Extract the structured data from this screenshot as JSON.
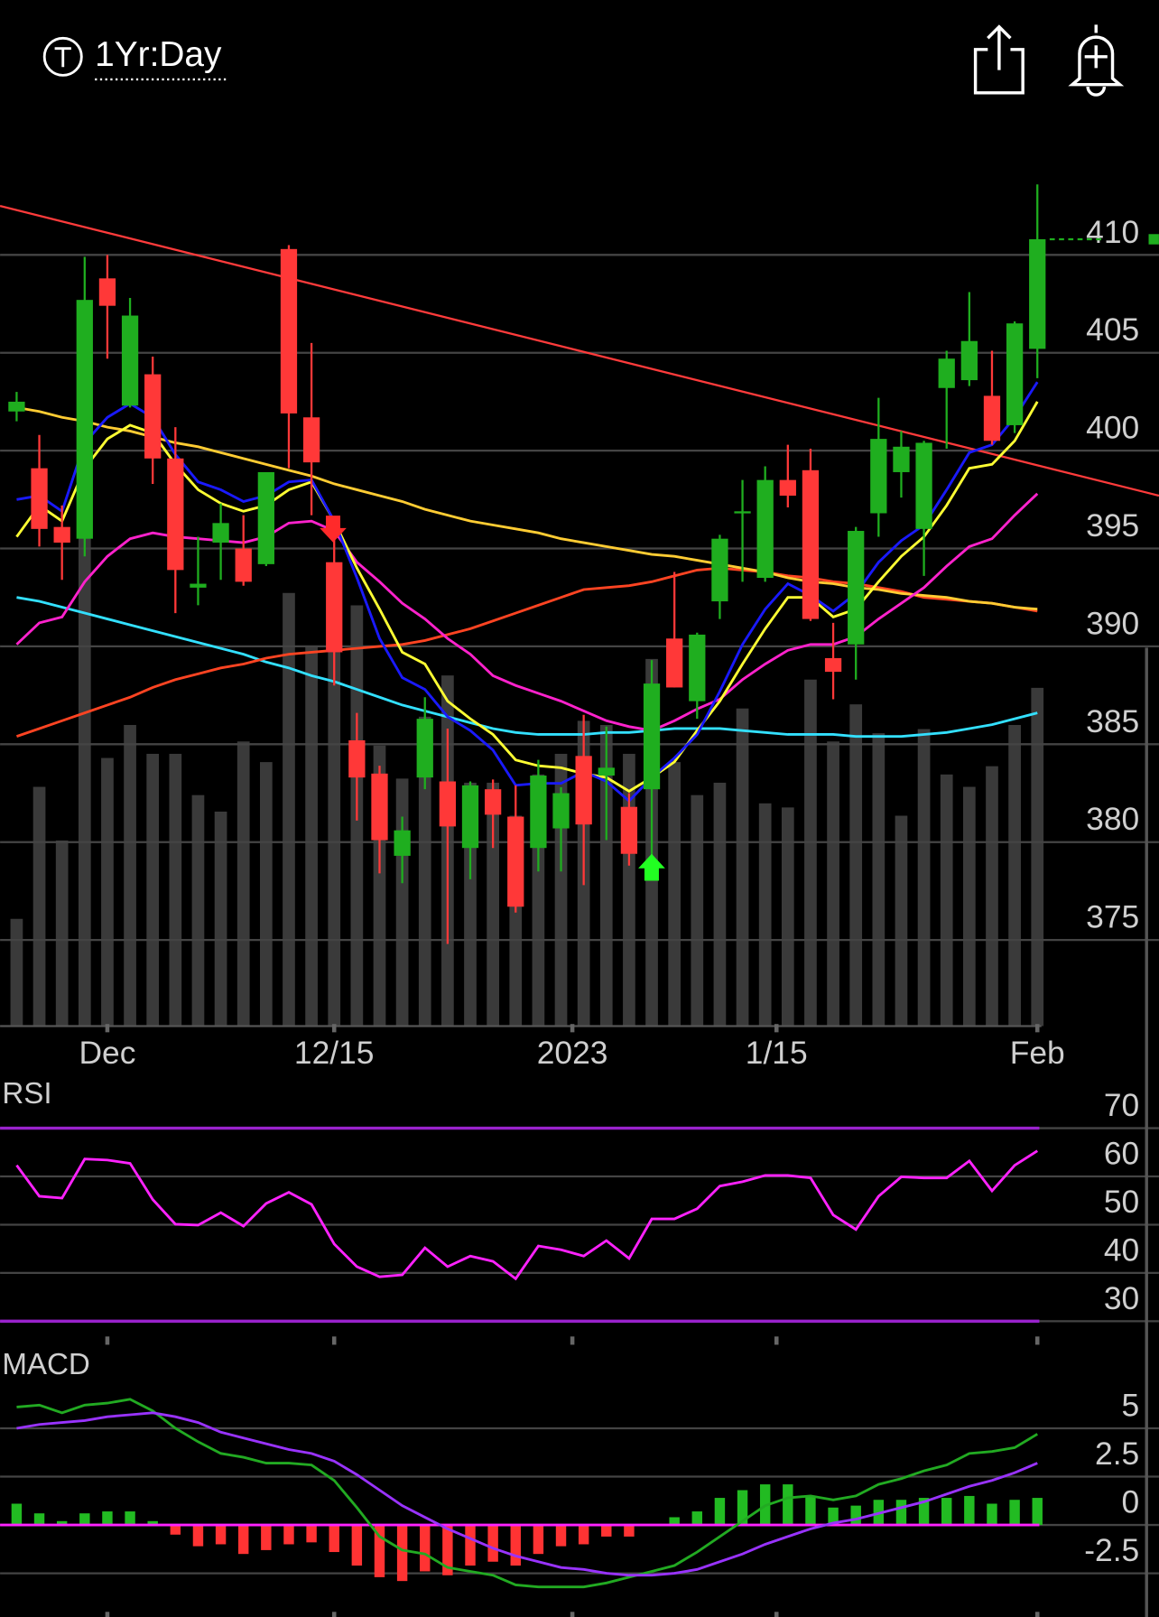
{
  "chart_data": [
    {
      "type": "candlestick",
      "title": "1Yr:Day",
      "open": [
        402.0,
        399.1,
        396.1,
        395.5,
        408.8,
        402.3,
        403.9,
        399.6,
        393.0,
        395.3,
        395.0,
        394.2,
        410.3,
        401.7,
        394.3,
        385.2,
        383.5,
        379.3,
        383.3,
        383.1,
        379.7,
        382.7,
        381.3,
        379.7,
        380.7,
        384.4,
        383.4,
        381.8,
        382.7,
        390.4,
        387.2,
        392.3,
        396.8,
        393.5,
        398.5,
        399.0,
        389.4,
        390.1,
        396.8,
        398.9,
        396.0,
        403.2,
        403.6,
        402.8,
        401.3,
        405.2
      ],
      "close": [
        402.5,
        396.0,
        395.3,
        407.7,
        407.4,
        406.9,
        399.6,
        393.9,
        393.2,
        396.3,
        393.3,
        398.9,
        401.9,
        399.4,
        389.7,
        383.3,
        380.1,
        380.6,
        386.3,
        380.8,
        382.9,
        381.4,
        376.7,
        383.4,
        382.5,
        380.9,
        383.8,
        379.4,
        388.1,
        387.9,
        390.6,
        395.5,
        396.9,
        398.5,
        397.7,
        391.4,
        388.7,
        395.9,
        400.6,
        400.2,
        400.4,
        404.7,
        405.6,
        400.5,
        406.5,
        410.8
      ],
      "high": [
        403.0,
        400.8,
        397.2,
        409.9,
        410.0,
        407.8,
        404.8,
        401.2,
        395.6,
        397.3,
        396.7,
        398.9,
        410.5,
        405.5,
        396.4,
        386.6,
        383.9,
        381.3,
        387.4,
        385.8,
        383.1,
        383.2,
        382.9,
        384.2,
        382.8,
        386.5,
        385.9,
        382.5,
        389.3,
        393.8,
        390.7,
        395.7,
        398.5,
        399.2,
        400.3,
        400.1,
        391.2,
        396.1,
        402.7,
        401.0,
        400.5,
        405.1,
        408.1,
        405.1,
        406.6,
        413.6
      ],
      "low": [
        401.5,
        395.1,
        393.4,
        394.6,
        404.7,
        402.2,
        398.3,
        391.7,
        392.1,
        393.4,
        393.1,
        394.1,
        399.1,
        396.7,
        388.0,
        381.1,
        378.4,
        377.9,
        382.7,
        374.8,
        378.1,
        379.7,
        376.4,
        378.5,
        378.5,
        377.8,
        380.1,
        378.8,
        378.3,
        387.9,
        386.3,
        391.4,
        393.3,
        393.3,
        397.1,
        391.3,
        387.3,
        388.3,
        395.6,
        397.6,
        393.6,
        400.1,
        403.3,
        400.3,
        400.9,
        403.7
      ],
      "up_color": "#1fae1f",
      "down_color": "#ff3838",
      "xlim": [
        -0.73,
        50.36
      ],
      "xticks": [
        {
          "value": 4,
          "label": "Dec"
        },
        {
          "value": 14,
          "label": "12/15"
        },
        {
          "value": 24.5,
          "label": "2023"
        },
        {
          "value": 33.5,
          "label": "1/15"
        },
        {
          "value": 45,
          "label": "Feb"
        }
      ],
      "ylim": [
        370.6,
        416.7
      ],
      "yticks": [
        375,
        380,
        385,
        390,
        395,
        400,
        405,
        410
      ],
      "volume": {
        "color": "#3a3a3a",
        "ylim": [
          0,
          120
        ],
        "values": [
          26,
          58,
          45,
          119,
          65,
          73,
          66,
          66,
          56,
          52,
          69,
          64,
          105,
          92,
          91,
          102,
          68,
          60,
          75,
          85,
          59,
          59,
          51,
          61,
          66,
          74,
          73,
          66,
          89,
          64,
          56,
          59,
          77,
          54,
          53,
          84,
          69,
          78,
          71,
          51,
          72,
          61,
          58,
          63,
          73,
          82
        ]
      },
      "trendline": {
        "x": [
          -0.73,
          50.36
        ],
        "values": [
          412.5,
          397.7
        ],
        "color": "#ff3b3b"
      },
      "series": [
        {
          "color": "#33e0ff",
          "values": [
            392.5,
            392.3,
            392.0,
            391.7,
            391.4,
            391.1,
            390.8,
            390.5,
            390.2,
            389.9,
            389.6,
            389.2,
            388.9,
            388.5,
            388.2,
            387.8,
            387.4,
            387.0,
            386.7,
            386.4,
            386.1,
            385.8,
            385.6,
            385.5,
            385.5,
            385.5,
            385.6,
            385.6,
            385.7,
            385.8,
            385.8,
            385.8,
            385.7,
            385.6,
            385.5,
            385.5,
            385.5,
            385.4,
            385.4,
            385.4,
            385.5,
            385.6,
            385.8,
            386.0,
            386.3,
            386.6
          ]
        },
        {
          "color": "#ff4422",
          "values": [
            385.4,
            385.8,
            386.2,
            386.6,
            387.0,
            387.4,
            387.9,
            388.3,
            388.6,
            388.9,
            389.1,
            389.4,
            389.6,
            389.7,
            389.8,
            389.9,
            390.0,
            390.1,
            390.3,
            390.6,
            390.9,
            391.3,
            391.7,
            392.1,
            392.5,
            392.9,
            393.0,
            393.1,
            393.3,
            393.6,
            393.9,
            394.0,
            393.9,
            393.8,
            393.6,
            393.5,
            393.3,
            393.2,
            393.0,
            392.8,
            392.5,
            392.4,
            392.3,
            392.2,
            392.0,
            391.8
          ]
        },
        {
          "color": "#ffcc33",
          "values": [
            402.2,
            402.0,
            401.7,
            401.5,
            401.2,
            401.0,
            400.7,
            400.4,
            400.2,
            399.9,
            399.6,
            399.3,
            399.0,
            398.7,
            398.3,
            398.0,
            397.7,
            397.4,
            397.0,
            396.7,
            396.4,
            396.2,
            396.0,
            395.8,
            395.5,
            395.3,
            395.1,
            394.9,
            394.7,
            394.6,
            394.4,
            394.2,
            394.0,
            393.8,
            393.5,
            393.3,
            393.2,
            393.0,
            392.9,
            392.7,
            392.6,
            392.5,
            392.3,
            392.2,
            392.0,
            391.9
          ]
        },
        {
          "color": "#ff22cc",
          "values": [
            390.1,
            391.2,
            391.5,
            393.3,
            394.6,
            395.5,
            395.8,
            395.6,
            395.5,
            395.4,
            395.3,
            395.6,
            396.3,
            396.4,
            395.9,
            394.3,
            393.3,
            392.2,
            391.4,
            390.4,
            389.6,
            388.5,
            388.0,
            387.6,
            387.2,
            386.7,
            386.2,
            385.9,
            385.7,
            386.2,
            386.8,
            387.3,
            388.3,
            389.1,
            389.8,
            390.1,
            390.1,
            390.5,
            391.4,
            392.2,
            393.0,
            394.1,
            395.1,
            395.5,
            396.7,
            397.8
          ]
        },
        {
          "color": "#ffff33",
          "values": [
            395.6,
            397.2,
            396.4,
            399.1,
            400.6,
            401.3,
            400.9,
            399.3,
            398.0,
            397.3,
            396.9,
            397.2,
            398.0,
            398.4,
            396.4,
            394.0,
            391.9,
            389.7,
            389.1,
            387.2,
            386.3,
            385.5,
            384.2,
            383.9,
            383.8,
            383.5,
            383.3,
            382.6,
            383.3,
            384.1,
            385.7,
            387.2,
            389.1,
            390.9,
            392.5,
            392.5,
            391.5,
            391.9,
            393.3,
            394.6,
            395.6,
            397.2,
            399.1,
            399.3,
            400.5,
            402.5
          ]
        },
        {
          "color": "#1a1aff",
          "values": [
            397.5,
            397.7,
            396.9,
            400.4,
            401.7,
            402.4,
            401.7,
            399.8,
            398.4,
            398.0,
            397.4,
            397.7,
            398.4,
            398.5,
            396.4,
            393.5,
            390.4,
            388.4,
            387.8,
            386.4,
            385.7,
            384.7,
            382.9,
            383.0,
            383.0,
            383.6,
            383.1,
            382.1,
            383.3,
            384.3,
            385.5,
            387.7,
            390.1,
            391.9,
            393.2,
            392.6,
            391.8,
            392.7,
            394.3,
            395.4,
            396.2,
            398.0,
            399.9,
            400.3,
            401.7,
            403.5
          ]
        }
      ]
    },
    {
      "type": "line",
      "title": "RSI",
      "ylim": [
        26.4,
        79.4
      ],
      "yticks": [
        30,
        40,
        50,
        60,
        70
      ],
      "levels": [
        70,
        30
      ],
      "level_color": "#9922cc",
      "series": [
        {
          "color": "#ff22ff",
          "values": [
            62.3,
            55.9,
            55.5,
            63.6,
            63.4,
            62.7,
            55.2,
            50.1,
            49.9,
            52.5,
            49.7,
            54.4,
            56.7,
            54.2,
            46.0,
            41.3,
            39.2,
            39.6,
            45.2,
            41.3,
            43.5,
            42.4,
            38.8,
            45.6,
            44.8,
            43.5,
            46.7,
            43.0,
            51.2,
            51.2,
            53.3,
            58.0,
            58.9,
            60.2,
            60.2,
            59.7,
            52.0,
            49.0,
            55.9,
            59.9,
            59.7,
            59.7,
            63.2,
            57.0,
            62.3,
            65.3
          ]
        }
      ]
    },
    {
      "type": "macd",
      "title": "MACD",
      "ylim": [
        -4.6,
        9.0
      ],
      "yticks": [
        -2.5,
        0,
        2.5,
        5
      ],
      "zero_color": "#ff22ff",
      "series": [
        {
          "color": "#22aa22",
          "values": [
            6.1,
            6.2,
            5.8,
            6.2,
            6.3,
            6.5,
            5.9,
            5.0,
            4.3,
            3.7,
            3.5,
            3.2,
            3.2,
            3.1,
            2.3,
            0.9,
            -0.6,
            -1.3,
            -1.5,
            -2.2,
            -2.4,
            -2.6,
            -3.1,
            -3.2,
            -3.2,
            -3.2,
            -3.0,
            -2.7,
            -2.4,
            -2.1,
            -1.4,
            -0.6,
            0.2,
            1.0,
            1.4,
            1.5,
            1.3,
            1.5,
            2.1,
            2.4,
            2.8,
            3.1,
            3.7,
            3.8,
            4.0,
            4.7
          ]
        },
        {
          "color": "#9933ff",
          "values": [
            5.0,
            5.2,
            5.3,
            5.4,
            5.6,
            5.7,
            5.8,
            5.6,
            5.3,
            4.8,
            4.5,
            4.2,
            3.9,
            3.7,
            3.3,
            2.6,
            1.8,
            1.0,
            0.4,
            -0.2,
            -0.7,
            -1.2,
            -1.6,
            -1.9,
            -2.2,
            -2.3,
            -2.5,
            -2.6,
            -2.6,
            -2.5,
            -2.3,
            -1.9,
            -1.5,
            -1.0,
            -0.6,
            -0.2,
            0.1,
            0.3,
            0.6,
            0.9,
            1.2,
            1.6,
            2.0,
            2.3,
            2.7,
            3.2
          ]
        }
      ],
      "histogram": {
        "up_color": "#22bb22",
        "down_color": "#ff3333",
        "values": [
          1.1,
          0.6,
          0.2,
          0.6,
          0.7,
          0.7,
          0.2,
          -0.5,
          -1.1,
          -1.0,
          -1.5,
          -1.3,
          -1.0,
          -0.9,
          -1.4,
          -2.1,
          -2.7,
          -2.9,
          -2.4,
          -2.6,
          -2.1,
          -1.9,
          -2.1,
          -1.5,
          -1.1,
          -1.0,
          -0.6,
          -0.6,
          0,
          0.4,
          0.7,
          1.4,
          1.8,
          2.1,
          2.1,
          1.5,
          0.9,
          1.0,
          1.3,
          1.3,
          1.4,
          1.4,
          1.5,
          1.1,
          1.3,
          1.4
        ]
      }
    }
  ]
}
